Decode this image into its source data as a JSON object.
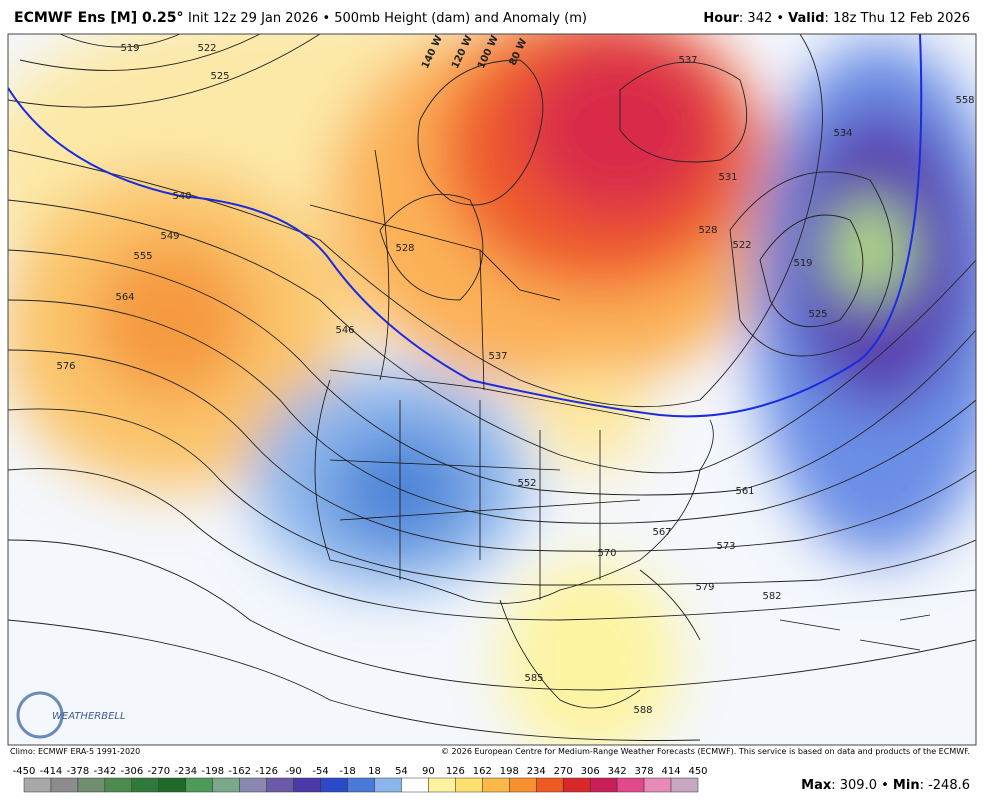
{
  "header": {
    "title": "ECMWF Ens [M] 0.25°",
    "subtitle": "Init 12z 29 Jan 2026 • 500mb Height (dam) and Anomaly (m)",
    "hour_label": "Hour",
    "hour_value": ": 342 • ",
    "valid_label": "Valid",
    "valid_value": ": 18z Thu 12 Feb 2026"
  },
  "map": {
    "contour_labels": [
      519,
      522,
      525,
      540,
      549,
      555,
      564,
      576,
      546,
      528,
      537,
      552,
      567,
      570,
      573,
      561,
      579,
      582,
      585,
      588,
      537,
      531,
      528,
      522,
      519,
      525,
      534,
      558
    ],
    "longitude_labels": [
      "140 W",
      "120 W",
      "100 W",
      "80 W"
    ],
    "logo": "WEATHERBELL"
  },
  "footer": {
    "climo": "Climo: ECMWF ERA-5 1991-2020",
    "copyright": "© 2026 European Centre for Medium-Range Weather Forecasts (ECMWF). This service is based on data and products of the ECMWF.",
    "colorbar_labels": [
      -450,
      -414,
      -378,
      -342,
      -306,
      -270,
      -234,
      -198,
      -162,
      -126,
      -90,
      -54,
      -18,
      18,
      54,
      90,
      126,
      162,
      198,
      234,
      270,
      306,
      342,
      378,
      414,
      450
    ],
    "max_label": "Max",
    "max_value": ": 309.0 • ",
    "min_label": "Min",
    "min_value": ": -248.6"
  }
}
